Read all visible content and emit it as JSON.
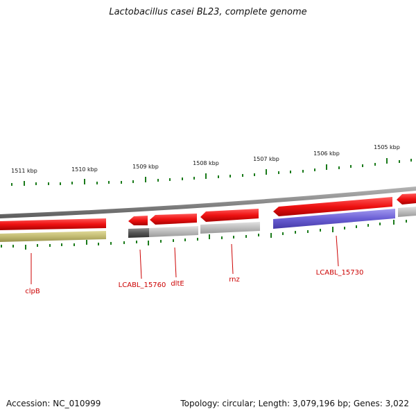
{
  "title": "Lactobacillus casei BL23, complete genome",
  "footer": {
    "accession": "Accession: NC_010999",
    "summary": "Topology: circular; Length: 3,079,196 bp; Genes: 3,022"
  },
  "colors": {
    "forward_cds": "#ee1111",
    "gene_gray": "#bbbbbb",
    "gene_dark": "#555555",
    "gene_olive": "#c2bb72",
    "gene_purple": "#6a5fd4",
    "backbone": "#8a8a8a",
    "tick": "#1a7a1a",
    "label": "#cc0000"
  },
  "scale_labels": [
    "1511 kbp",
    "1510 kbp",
    "1509 kbp",
    "1508 kbp",
    "1507 kbp",
    "1506 kbp",
    "1505 kbp"
  ],
  "gene_labels": [
    "clpB",
    "LCABL_15760",
    "dltE",
    "rnz",
    "LCABL_15730"
  ]
}
